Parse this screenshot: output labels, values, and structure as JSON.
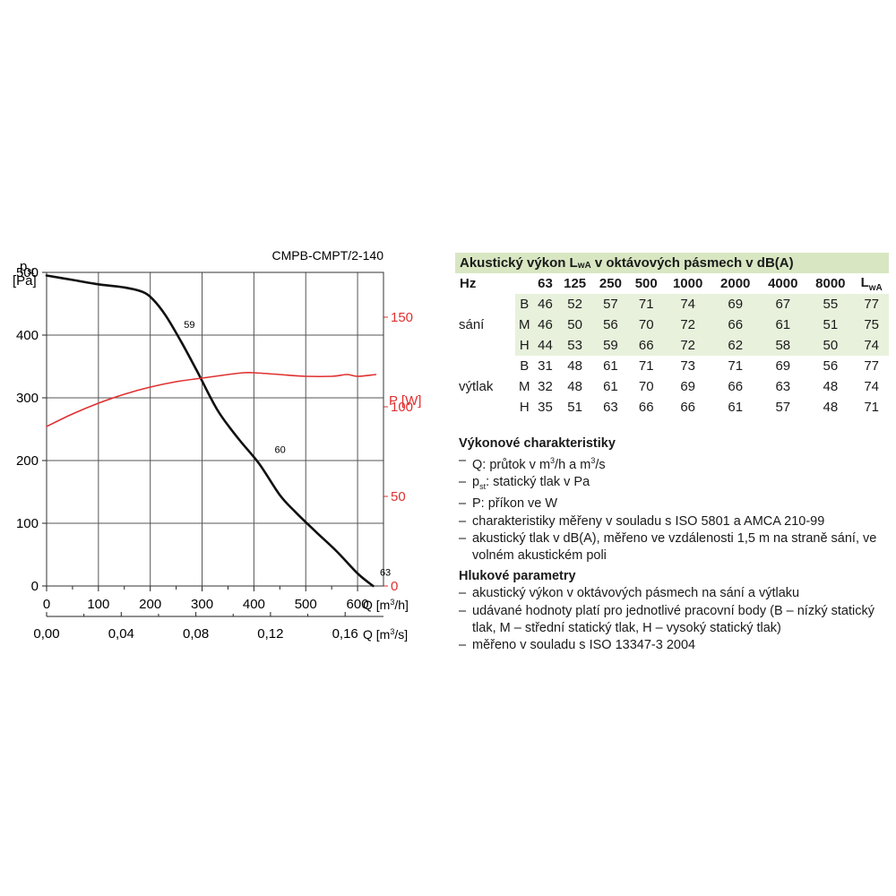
{
  "chart_data": {
    "type": "line",
    "title": "CMPB-CMPT/2-140",
    "ylabel_left_symbol": "p",
    "ylabel_left_sub": "st",
    "ylabel_left_unit": "[Pa]",
    "ylabel_right": "P [W]",
    "xlabel_primary": "Q [m³/h]",
    "xlabel_secondary": "Q [m³/s]",
    "xlim": [
      0,
      650
    ],
    "ylim_left": [
      0,
      500
    ],
    "ylim_right": [
      0,
      175
    ],
    "x_ticks": [
      "0",
      "100",
      "200",
      "300",
      "400",
      "500",
      "600"
    ],
    "x_tick_values": [
      0,
      100,
      200,
      300,
      400,
      500,
      600
    ],
    "x2_ticks": [
      "0,00",
      "0,04",
      "0,08",
      "0,12",
      "0,16"
    ],
    "x2_tick_values": [
      0,
      144,
      288,
      432,
      576
    ],
    "y_left_ticks": [
      "0",
      "100",
      "200",
      "300",
      "400",
      "500"
    ],
    "y_left_tick_values": [
      0,
      100,
      200,
      300,
      400,
      500
    ],
    "y_right_ticks": [
      "0",
      "50",
      "100",
      "150"
    ],
    "y_right_tick_values": [
      0,
      50,
      100,
      150
    ],
    "series": [
      {
        "name": "pst",
        "axis": "left",
        "color": "#111111",
        "x": [
          0,
          50,
          100,
          150,
          185,
          205,
          230,
          260,
          290,
          330,
          370,
          410,
          450,
          480,
          520,
          560,
          600,
          630
        ],
        "y": [
          495,
          488,
          481,
          476,
          469,
          457,
          431,
          389,
          343,
          280,
          235,
          195,
          145,
          118,
          86,
          55,
          20,
          0
        ]
      },
      {
        "name": "P",
        "axis": "right",
        "color": "#e03030",
        "x": [
          0,
          50,
          100,
          150,
          200,
          250,
          300,
          350,
          380,
          400,
          450,
          500,
          550,
          580,
          600,
          635
        ],
        "y": [
          89,
          96,
          102,
          107,
          111,
          114,
          116,
          118,
          119,
          119,
          118,
          117,
          117,
          118,
          117,
          118
        ]
      }
    ],
    "annotations": [
      {
        "text": "59",
        "x": 265,
        "y": 417
      },
      {
        "text": "60",
        "x": 440,
        "y": 218
      },
      {
        "text": "63",
        "x": 643,
        "y": 22
      }
    ]
  },
  "table": {
    "title": "Akustický výkon L",
    "title_sub": "wA",
    "title_rest": " v oktávových pásmech v dB(A)",
    "hz_label": "Hz",
    "bands": [
      "63",
      "125",
      "250",
      "500",
      "1000",
      "2000",
      "4000",
      "8000"
    ],
    "total_label": "L",
    "total_sub": "wA",
    "groups": [
      {
        "name": "sání",
        "rows": [
          {
            "mode": "B",
            "values": [
              "46",
              "52",
              "57",
              "71",
              "74",
              "69",
              "67",
              "55"
            ],
            "total": "77"
          },
          {
            "mode": "M",
            "values": [
              "46",
              "50",
              "56",
              "70",
              "72",
              "66",
              "61",
              "51"
            ],
            "total": "75"
          },
          {
            "mode": "H",
            "values": [
              "44",
              "53",
              "59",
              "66",
              "72",
              "62",
              "58",
              "50"
            ],
            "total": "74"
          }
        ]
      },
      {
        "name": "výtlak",
        "rows": [
          {
            "mode": "B",
            "values": [
              "31",
              "48",
              "61",
              "71",
              "73",
              "71",
              "69",
              "56"
            ],
            "total": "77"
          },
          {
            "mode": "M",
            "values": [
              "32",
              "48",
              "61",
              "70",
              "69",
              "66",
              "63",
              "48"
            ],
            "total": "74"
          },
          {
            "mode": "H",
            "values": [
              "35",
              "51",
              "63",
              "66",
              "66",
              "61",
              "57",
              "48"
            ],
            "total": "71"
          }
        ]
      }
    ]
  },
  "notes": {
    "performance_heading": "Výkonové charakteristiky",
    "performance_items": [
      {
        "pre": "Q: průtok v m",
        "sup": "3",
        "post": "/h a m",
        "sup2": "3",
        "post2": "/s"
      },
      {
        "pre": "p",
        "sub": "st",
        "post": ": statický tlak v Pa"
      },
      {
        "pre": "P: příkon ve W"
      },
      {
        "pre": "charakteristiky měřeny v souladu s ISO 5801 a AMCA 210-99"
      },
      {
        "pre": "akustický tlak v dB(A), měřeno ve vzdálenosti 1,5 m na straně sání, ve volném akustickém poli"
      }
    ],
    "noise_heading": "Hlukové parametry",
    "noise_items": [
      "akustický výkon v oktávových pásmech na sání a výtlaku",
      "udávané hodnoty platí pro jednotlivé pracovní body (B – nízký statický tlak, M – střední statický tlak, H – vysoký statický tlak)",
      "měřeno v souladu s ISO 13347-3 2004"
    ]
  },
  "colors": {
    "grid": "#555555",
    "red_axis": "#e03030",
    "table_title_bg": "#d8e6c2",
    "table_row_bg": "#e8f1dc"
  }
}
